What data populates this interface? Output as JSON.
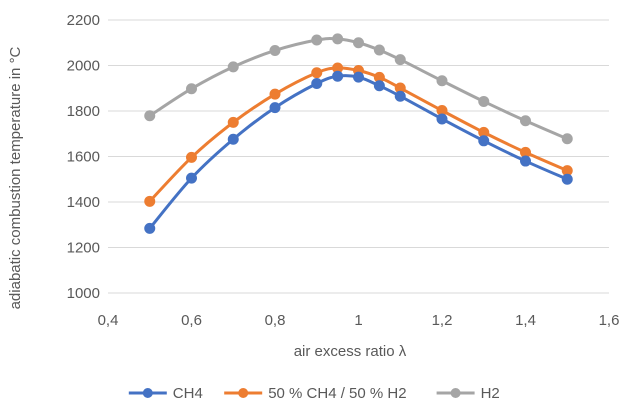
{
  "chart_data": {
    "type": "line",
    "title": "",
    "xlabel": "air excess ratio λ",
    "ylabel": "adiabatic combustion temperature in °C",
    "xlim": [
      0.4,
      1.6
    ],
    "ylim": [
      1000,
      2200
    ],
    "x_ticks": [
      "0,4",
      "0,6",
      "0,8",
      "1",
      "1,2",
      "1,4",
      "1,6"
    ],
    "y_ticks": [
      "1000",
      "1200",
      "1400",
      "1600",
      "1800",
      "2000",
      "2200"
    ],
    "grid": "horizontal",
    "legend_position": "bottom",
    "x": [
      0.5,
      0.6,
      0.7,
      0.8,
      0.9,
      0.95,
      1.0,
      1.05,
      1.1,
      1.2,
      1.3,
      1.4,
      1.5
    ],
    "series": [
      {
        "name": "CH4",
        "color": "#4472c4",
        "values": [
          1284,
          1505,
          1676,
          1815,
          1921,
          1953,
          1949,
          1911,
          1865,
          1765,
          1669,
          1580,
          1500
        ]
      },
      {
        "name": "50 % CH4 / 50 % H2",
        "color": "#ed7d31",
        "values": [
          1403,
          1596,
          1750,
          1874,
          1968,
          1989,
          1978,
          1948,
          1901,
          1802,
          1706,
          1618,
          1538
        ]
      },
      {
        "name": "H2",
        "color": "#a5a5a5",
        "values": [
          1779,
          1898,
          1994,
          2066,
          2112,
          2117,
          2100,
          2068,
          2026,
          1933,
          1842,
          1757,
          1678
        ]
      }
    ]
  }
}
